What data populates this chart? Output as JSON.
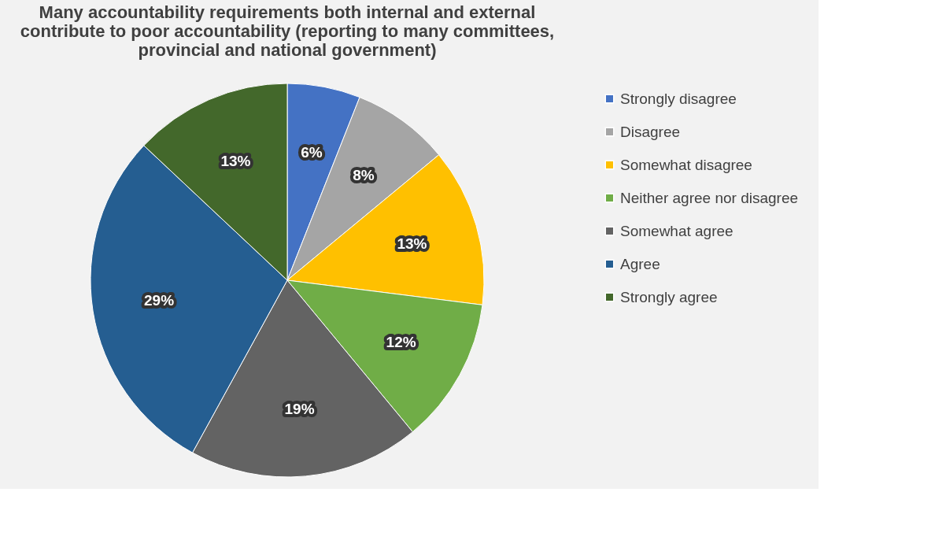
{
  "chart_data": {
    "type": "pie",
    "title": "Many accountability requirements both internal and external contribute to poor accountability (reporting to many committees, provincial and national government)",
    "categories": [
      "Strongly disagree",
      "Disagree",
      "Somewhat disagree",
      "Neither agree nor disagree",
      "Somewhat agree",
      "Agree",
      "Strongly agree"
    ],
    "values": [
      6,
      8,
      13,
      12,
      19,
      29,
      13
    ],
    "value_labels": [
      "6%",
      "8%",
      "13%",
      "12%",
      "19%",
      "29%",
      "13%"
    ],
    "colors": [
      "#4472c4",
      "#a5a5a5",
      "#ffc000",
      "#70ad47",
      "#636363",
      "#255e91",
      "#43682b"
    ],
    "legend": "right"
  }
}
